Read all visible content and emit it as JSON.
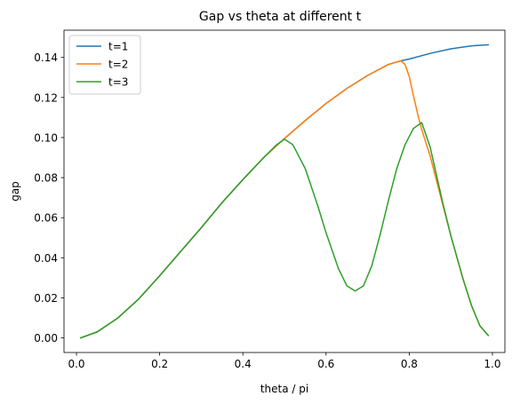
{
  "chart_data": {
    "type": "line",
    "title": "Gap vs theta at different t",
    "xlabel": "theta / pi",
    "ylabel": "gap",
    "xlim": [
      -0.03,
      1.03
    ],
    "ylim": [
      -0.0073,
      0.1536
    ],
    "xticks": [
      0.0,
      0.2,
      0.4,
      0.6,
      0.8,
      1.0
    ],
    "xtick_labels": [
      "0.0",
      "0.2",
      "0.4",
      "0.6",
      "0.8",
      "1.0"
    ],
    "yticks": [
      0.0,
      0.02,
      0.04,
      0.06,
      0.08,
      0.1,
      0.12,
      0.14
    ],
    "ytick_labels": [
      "0.00",
      "0.02",
      "0.04",
      "0.06",
      "0.08",
      "0.10",
      "0.12",
      "0.14"
    ],
    "grid": false,
    "legend_position": "top-left",
    "series": [
      {
        "name": "t=1",
        "color": "#1f77b4",
        "x": [
          0.01,
          0.05,
          0.1,
          0.15,
          0.2,
          0.25,
          0.3,
          0.35,
          0.4,
          0.45,
          0.5,
          0.55,
          0.6,
          0.65,
          0.7,
          0.75,
          0.78,
          0.8,
          0.85,
          0.9,
          0.95,
          0.99
        ],
        "y": [
          0.0,
          0.003,
          0.01,
          0.0195,
          0.031,
          0.043,
          0.055,
          0.0675,
          0.079,
          0.09,
          0.0995,
          0.1085,
          0.117,
          0.1245,
          0.131,
          0.1365,
          0.1383,
          0.1392,
          0.142,
          0.1443,
          0.1458,
          0.1463
        ]
      },
      {
        "name": "t=2",
        "color": "#ff7f0e",
        "x": [
          0.01,
          0.05,
          0.1,
          0.15,
          0.2,
          0.25,
          0.3,
          0.35,
          0.4,
          0.45,
          0.5,
          0.55,
          0.6,
          0.65,
          0.7,
          0.75,
          0.78,
          0.79,
          0.8,
          0.81,
          0.82,
          0.83,
          0.85,
          0.88,
          0.9,
          0.93,
          0.95,
          0.97,
          0.99
        ],
        "y": [
          0.0,
          0.003,
          0.01,
          0.0195,
          0.031,
          0.043,
          0.055,
          0.0675,
          0.079,
          0.09,
          0.0995,
          0.1085,
          0.117,
          0.1245,
          0.131,
          0.1365,
          0.1383,
          0.1365,
          0.1305,
          0.121,
          0.112,
          0.104,
          0.091,
          0.067,
          0.051,
          0.029,
          0.016,
          0.006,
          0.0012
        ]
      },
      {
        "name": "t=3",
        "color": "#2ca02c",
        "x": [
          0.01,
          0.05,
          0.1,
          0.15,
          0.2,
          0.25,
          0.3,
          0.35,
          0.4,
          0.45,
          0.48,
          0.5,
          0.52,
          0.55,
          0.58,
          0.6,
          0.63,
          0.65,
          0.67,
          0.69,
          0.71,
          0.73,
          0.75,
          0.77,
          0.79,
          0.81,
          0.83,
          0.85,
          0.88,
          0.9,
          0.93,
          0.95,
          0.97,
          0.99
        ],
        "y": [
          0.0,
          0.003,
          0.01,
          0.0195,
          0.031,
          0.043,
          0.055,
          0.0675,
          0.079,
          0.09,
          0.0962,
          0.0992,
          0.0965,
          0.0845,
          0.066,
          0.0525,
          0.0345,
          0.026,
          0.0234,
          0.026,
          0.036,
          0.0515,
          0.0685,
          0.0845,
          0.0965,
          0.1045,
          0.1075,
          0.0955,
          0.068,
          0.051,
          0.029,
          0.016,
          0.006,
          0.0012
        ]
      }
    ]
  }
}
